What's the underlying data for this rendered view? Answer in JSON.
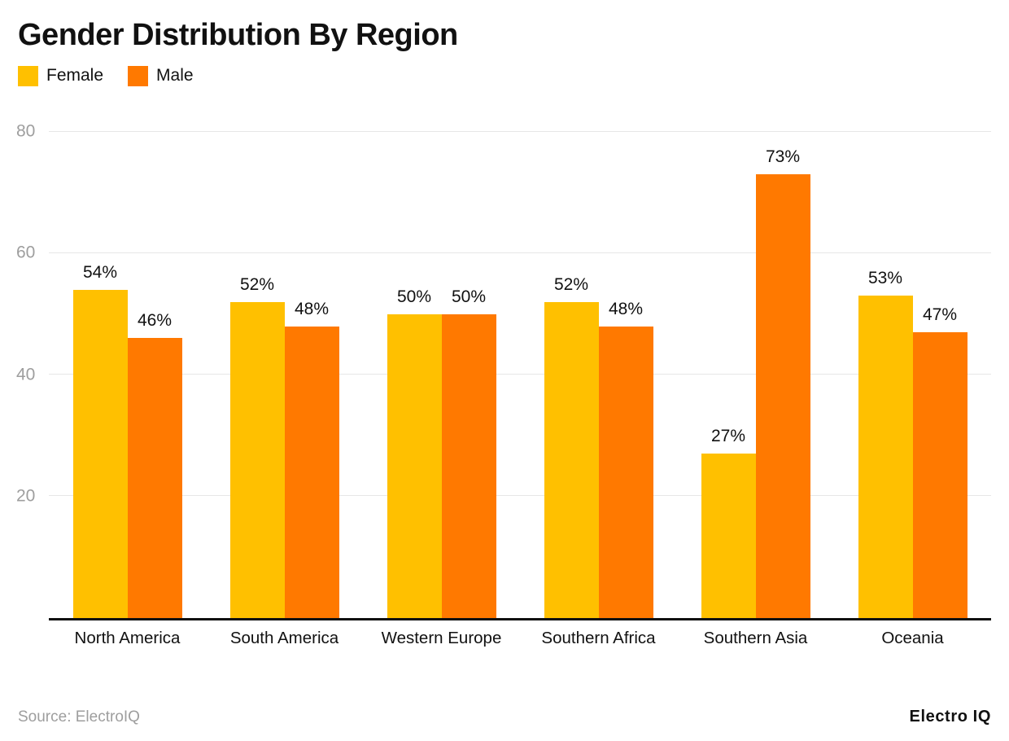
{
  "title": "Gender Distribution By Region",
  "legend": [
    {
      "label": "Female",
      "color": "#FFC000"
    },
    {
      "label": "Male",
      "color": "#FF7900"
    }
  ],
  "footer": {
    "source": "Source: ElectroIQ",
    "brand": "Electro IQ"
  },
  "colors": {
    "female": "#FFC000",
    "male": "#FF7900",
    "grid": "#e7e7e7",
    "tick_label": "#9e9e9e",
    "axis": "#111111",
    "text": "#111111",
    "source_text": "#9e9e9e",
    "background": "#ffffff"
  },
  "chart_data": {
    "type": "bar",
    "title": "Gender Distribution By Region",
    "categories": [
      "North America",
      "South America",
      "Western Europe",
      "Southern Africa",
      "Southern Asia",
      "Oceania"
    ],
    "series": [
      {
        "name": "Female",
        "color": "#FFC000",
        "values": [
          54,
          52,
          50,
          52,
          27,
          53
        ]
      },
      {
        "name": "Male",
        "color": "#FF7900",
        "values": [
          46,
          48,
          50,
          48,
          73,
          47
        ]
      }
    ],
    "value_suffix": "%",
    "xlabel": "",
    "ylabel": "",
    "ylim": [
      0,
      80
    ],
    "yticks": [
      20,
      40,
      60,
      80
    ],
    "grid": true,
    "legend_position": "top-left"
  }
}
